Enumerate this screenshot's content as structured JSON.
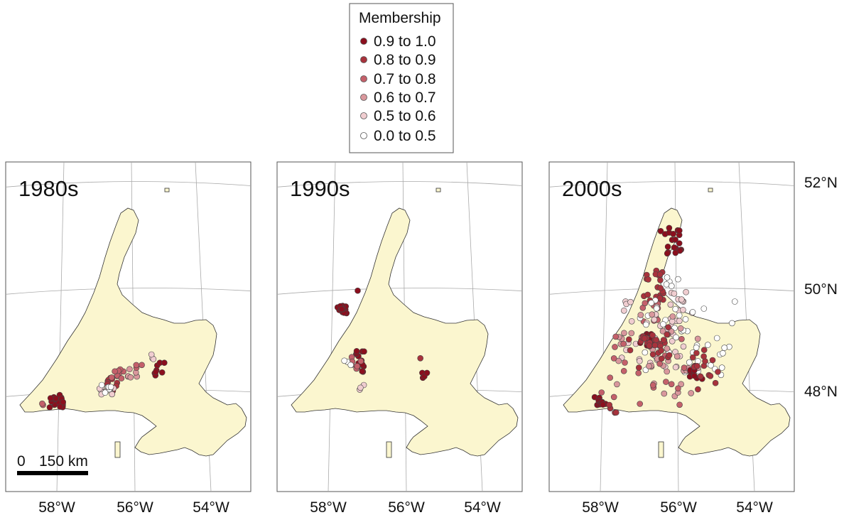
{
  "legend": {
    "title": "Membership",
    "items": [
      {
        "label": "0.9 to 1.0",
        "color": "#8b0f1e"
      },
      {
        "label": "0.8 to 0.9",
        "color": "#a8323c"
      },
      {
        "label": "0.7 to 0.8",
        "color": "#c4606a"
      },
      {
        "label": "0.6 to 0.7",
        "color": "#d9979c"
      },
      {
        "label": "0.5 to 0.6",
        "color": "#f0cdd0"
      },
      {
        "label": "0.0 to 0.5",
        "color": "#ffffff"
      }
    ]
  },
  "panels": [
    {
      "title": "1980s",
      "lon_labels": [
        "58°W",
        "56°W",
        "54°W"
      ]
    },
    {
      "title": "1990s",
      "lon_labels": [
        "58°W",
        "56°W",
        "54°W"
      ]
    },
    {
      "title": "2000s",
      "lon_labels": [
        "58°W",
        "56°W",
        "54°W"
      ]
    }
  ],
  "lat_labels": [
    "52°N",
    "50°N",
    "48°N"
  ],
  "scale_bar": {
    "start": "0",
    "end": "150 km"
  }
}
